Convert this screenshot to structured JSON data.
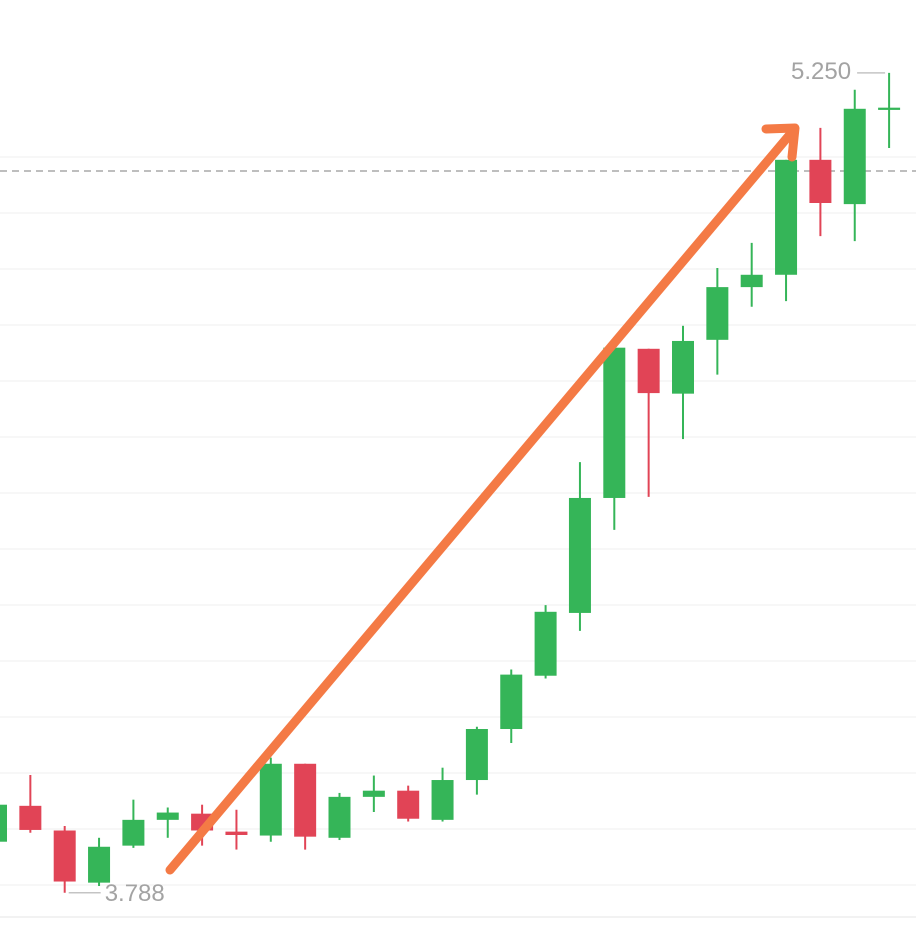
{
  "chart_data": {
    "type": "candlestick",
    "up_color": "#35b558",
    "down_color": "#e14456",
    "open": [
      3.879,
      3.943,
      3.899,
      3.806,
      3.872,
      3.918,
      3.929,
      3.897,
      3.89,
      4.018,
      3.886,
      3.959,
      3.97,
      3.918,
      3.989,
      4.08,
      4.175,
      4.287,
      4.492,
      4.758,
      4.678,
      4.774,
      4.868,
      4.89,
      5.095,
      5.016,
      5.184
    ],
    "high": [
      3.954,
      3.998,
      3.907,
      3.886,
      3.954,
      3.94,
      3.945,
      3.936,
      4.029,
      4.018,
      3.966,
      3.997,
      3.979,
      4.011,
      4.084,
      4.186,
      4.301,
      4.556,
      4.765,
      4.758,
      4.799,
      4.902,
      4.947,
      5.095,
      5.152,
      5.22,
      5.25
    ],
    "low": [
      3.874,
      3.895,
      3.788,
      3.8,
      3.868,
      3.886,
      3.872,
      3.865,
      3.879,
      3.865,
      3.882,
      3.932,
      3.915,
      3.915,
      3.963,
      4.055,
      4.17,
      4.255,
      4.435,
      4.494,
      4.597,
      4.712,
      4.833,
      4.843,
      4.959,
      4.95,
      5.116
    ],
    "close": [
      3.945,
      3.9,
      3.808,
      3.87,
      3.918,
      3.931,
      3.899,
      3.891,
      4.018,
      3.888,
      3.959,
      3.97,
      3.92,
      3.989,
      4.08,
      4.177,
      4.289,
      4.492,
      4.76,
      4.679,
      4.772,
      4.868,
      4.89,
      5.095,
      5.018,
      5.186,
      5.188
    ],
    "ylim": [
      3.718,
      5.38
    ],
    "annotations": [
      {
        "value": 5.25,
        "label": "5.250",
        "index": 26
      },
      {
        "value": 3.788,
        "label": "3.788",
        "index": 2
      }
    ]
  }
}
